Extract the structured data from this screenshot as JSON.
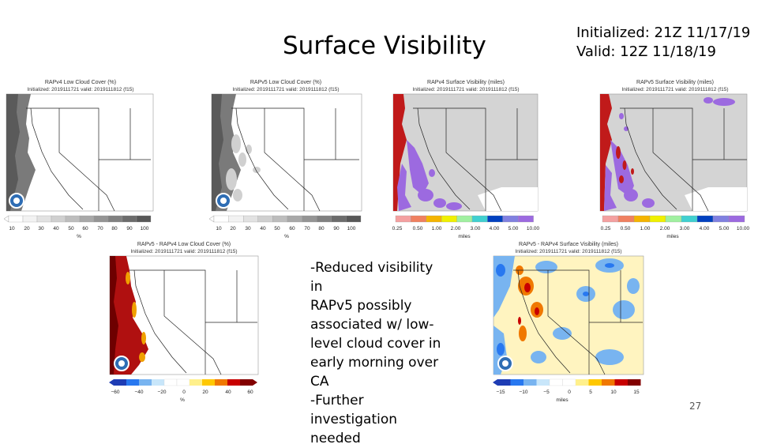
{
  "slide": {
    "title": "Surface Visibility",
    "init_line": "Initialized: 21Z 11/17/19",
    "valid_line": "Valid: 12Z 11/18/19",
    "notes": [
      "-Reduced visibility in",
      "RAPv5 possibly",
      "associated w/ low-",
      "level cloud cover in",
      "early morning over",
      "CA",
      "-Further",
      "investigation needed"
    ],
    "page_number": "27"
  },
  "panels": [
    {
      "id": "rapv4-lcc",
      "title": "RAPv4 Low Cloud Cover (%)",
      "subtitle": "Initialized: 2019111721 valid: 2019111812 (f15)",
      "ticks": [
        "10",
        "20",
        "30",
        "40",
        "50",
        "60",
        "70",
        "80",
        "90",
        "100"
      ],
      "unit": "%",
      "colors": [
        "#ffffff",
        "#f2f2f2",
        "#e2e2e2",
        "#d0d0d0",
        "#bdbdbd",
        "#a8a8a8",
        "#949494",
        "#808080",
        "#6c6c6c",
        "#585858"
      ]
    },
    {
      "id": "rapv5-lcc",
      "title": "RAPv5 Low Cloud Cover (%)",
      "subtitle": "Initialized: 2019111721 valid: 2019111812 (f15)",
      "ticks": [
        "10",
        "20",
        "30",
        "40",
        "50",
        "60",
        "70",
        "80",
        "90",
        "100"
      ],
      "unit": "%",
      "colors": [
        "#ffffff",
        "#f2f2f2",
        "#e2e2e2",
        "#d0d0d0",
        "#bdbdbd",
        "#a8a8a8",
        "#949494",
        "#808080",
        "#6c6c6c",
        "#585858"
      ]
    },
    {
      "id": "rapv4-vis",
      "title": "RAPv4 Surface Visibility (miles)",
      "subtitle": "Initialized: 2019111721 valid: 2019111812 (f15)",
      "ticks": [
        "0.25",
        "0.50",
        "1.00",
        "2.00",
        "3.00",
        "4.00",
        "5.00",
        "10.00"
      ],
      "unit": "miles",
      "colors": [
        "#f4a0a0",
        "#f08060",
        "#f4b400",
        "#f0f000",
        "#a0f0a0",
        "#40d0d0",
        "#0040c0",
        "#8080e0",
        "#9c6ae0"
      ]
    },
    {
      "id": "rapv5-vis",
      "title": "RAPv5 Surface Visibility (miles)",
      "subtitle": "Initialized: 2019111721 valid: 2019111812 (f15)",
      "ticks": [
        "0.25",
        "0.50",
        "1.00",
        "2.00",
        "3.00",
        "4.00",
        "5.00",
        "10.00"
      ],
      "unit": "miles",
      "colors": [
        "#f4a0a0",
        "#f08060",
        "#f4b400",
        "#f0f000",
        "#a0f0a0",
        "#40d0d0",
        "#0040c0",
        "#8080e0",
        "#9c6ae0"
      ]
    },
    {
      "id": "diff-lcc",
      "title": "RAPv5 - RAPv4 Low Cloud Cover (%)",
      "subtitle": "Initialized: 2019111721 valid: 2019111812 (f15)",
      "ticks": [
        "−60",
        "−40",
        "−20",
        "0",
        "20",
        "40",
        "60"
      ],
      "unit": "%",
      "colors": [
        "#1e3cb4",
        "#2878f0",
        "#78b4f0",
        "#c8e6fa",
        "#ffffff",
        "#ffffff",
        "#fff08c",
        "#ffc800",
        "#f07800",
        "#c80000",
        "#820000"
      ]
    },
    {
      "id": "diff-vis",
      "title": "RAPv5 - RAPv4 Surface Visibility (miles)",
      "subtitle": "Initialized: 2019111721 valid: 2019111812 (f15)",
      "ticks": [
        "−15",
        "−10",
        "−5",
        "0",
        "5",
        "10",
        "15"
      ],
      "unit": "miles",
      "colors": [
        "#1e3cb4",
        "#2878f0",
        "#78b4f0",
        "#c8e6fa",
        "#ffffff",
        "#ffffff",
        "#fff08c",
        "#ffc800",
        "#f07800",
        "#c80000",
        "#820000"
      ]
    }
  ]
}
